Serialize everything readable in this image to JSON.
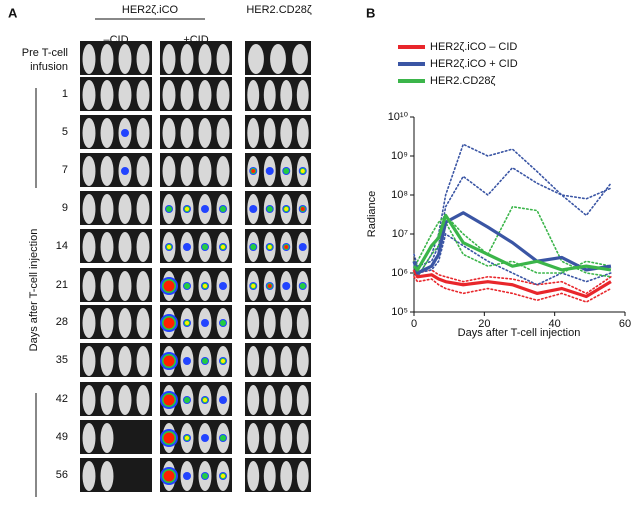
{
  "panel_a": {
    "label": "A",
    "group_title": "HER2ζ.iCO",
    "col_minus": "–CID",
    "col_plus": "+CID",
    "col_third": "HER2.CD28ζ",
    "pre_label": [
      "Pre T-cell",
      "infusion"
    ],
    "days": [
      "1",
      "5",
      "7",
      "9",
      "14",
      "21",
      "28",
      "35",
      "42",
      "49",
      "56"
    ],
    "y_title": "Days after T-cell injection"
  },
  "chart_data": {
    "type": "line",
    "panel_label": "B",
    "x_label": "Days after T-cell injection",
    "y_label": "Radiance",
    "x": [
      0,
      1,
      5,
      7,
      9,
      14,
      21,
      28,
      35,
      42,
      49,
      56
    ],
    "xlim": [
      0,
      60
    ],
    "xticks": [
      0,
      20,
      40,
      60
    ],
    "log_y": true,
    "ylim": [
      100000,
      10000000000
    ],
    "yticks": [
      {
        "value": 100000,
        "label": "10⁵"
      },
      {
        "value": 1000000,
        "label": "10⁶"
      },
      {
        "value": 10000000,
        "label": "10⁷"
      },
      {
        "value": 100000000,
        "label": "10⁸"
      },
      {
        "value": 1000000000,
        "label": "10⁹"
      },
      {
        "value": 10000000000,
        "label": "10¹⁰"
      }
    ],
    "legend": "upper left",
    "series": [
      {
        "name": "HER2ζ.iCO – CID",
        "color": "#e8262b",
        "values": [
          1200000,
          800000,
          900000,
          700000,
          600000,
          500000,
          600000,
          500000,
          300000,
          400000,
          250000,
          600000
        ],
        "mice": [
          [
            2000000,
            1000000,
            1200000,
            900000,
            800000,
            600000,
            800000,
            700000,
            500000,
            600000,
            300000,
            800000
          ],
          [
            800000,
            600000,
            700000,
            500000,
            400000,
            300000,
            400000,
            300000,
            200000,
            300000,
            180000,
            400000
          ]
        ]
      },
      {
        "name": "HER2ζ.iCO + CID",
        "color": "#3a55a4",
        "values": [
          2000000,
          1000000,
          1500000,
          3000000,
          20000000,
          35000000,
          15000000,
          6000000,
          2000000,
          2500000,
          1200000,
          1500000
        ],
        "mice": [
          [
            1000000,
            800000,
            3000000,
            10000000,
            100000000,
            2000000000,
            1000000000,
            1500000000,
            400000000,
            100000000,
            30000000,
            200000000
          ],
          [
            3000000,
            1500000,
            2000000,
            5000000,
            50000000,
            300000000,
            100000000,
            500000000,
            200000000,
            100000000,
            80000000,
            150000000
          ],
          [
            1500000,
            1000000,
            1200000,
            2000000,
            10000000,
            5000000,
            2000000,
            1000000,
            500000,
            1000000,
            600000,
            1000000
          ]
        ]
      },
      {
        "name": "HER2.CD28ζ",
        "color": "#3bb54a",
        "values": [
          1500000,
          1200000,
          5000000,
          8000000,
          30000000,
          6000000,
          3000000,
          1500000,
          2000000,
          1200000,
          1500000,
          1200000
        ],
        "mice": [
          [
            1000000,
            2000000,
            10000000,
            20000000,
            30000000,
            10000000,
            3000000,
            50000000,
            40000000,
            2000000,
            1000000,
            800000
          ],
          [
            2000000,
            800000,
            3000000,
            5000000,
            20000000,
            3000000,
            1500000,
            2000000,
            1000000,
            1000000,
            2000000,
            1500000
          ]
        ]
      }
    ]
  }
}
